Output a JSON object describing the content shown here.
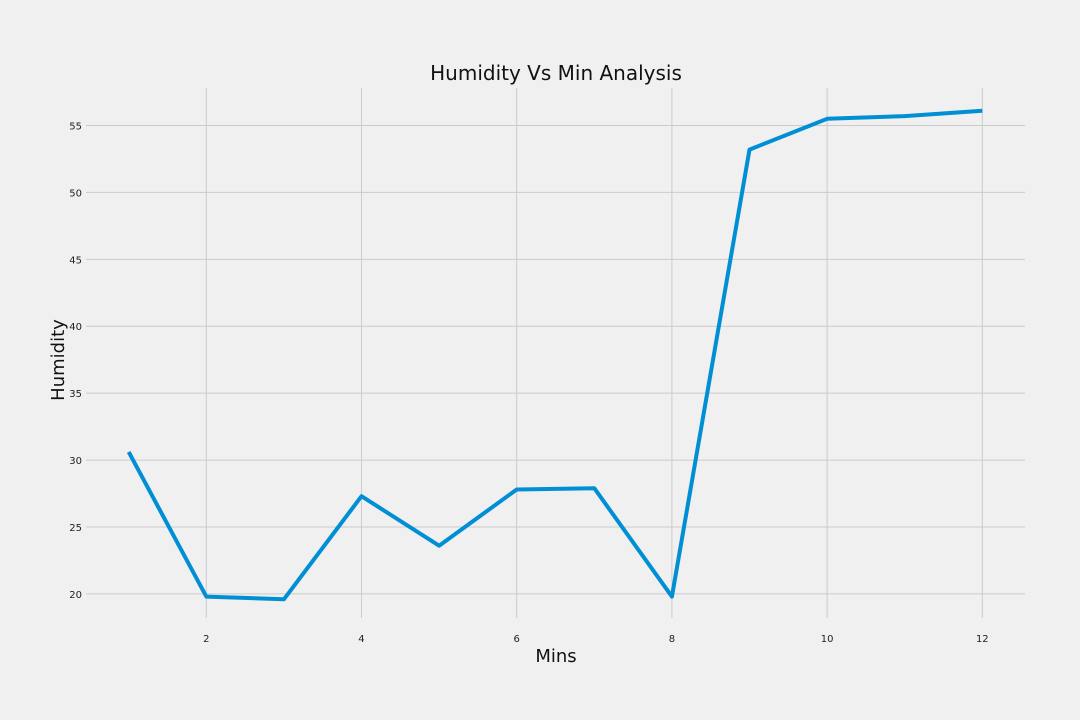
{
  "chart_data": {
    "type": "line",
    "title": "Humidity Vs Min Analysis",
    "xlabel": "Mins",
    "ylabel": "Humidity",
    "x": [
      1,
      2,
      3,
      4,
      5,
      6,
      7,
      8,
      9,
      10,
      11,
      12
    ],
    "series": [
      {
        "values": [
          30.6,
          19.8,
          19.6,
          27.3,
          23.6,
          27.8,
          27.9,
          19.8,
          53.2,
          55.5,
          55.7,
          56.1
        ],
        "color": "#008fd5"
      }
    ],
    "xlim": [
      0.45,
      12.55
    ],
    "ylim": [
      18.2,
      57.8
    ],
    "xticks": [
      2,
      4,
      6,
      8,
      10,
      12
    ],
    "yticks": [
      20,
      25,
      30,
      35,
      40,
      45,
      50,
      55
    ],
    "grid": true,
    "background": "#f0f0f0"
  }
}
